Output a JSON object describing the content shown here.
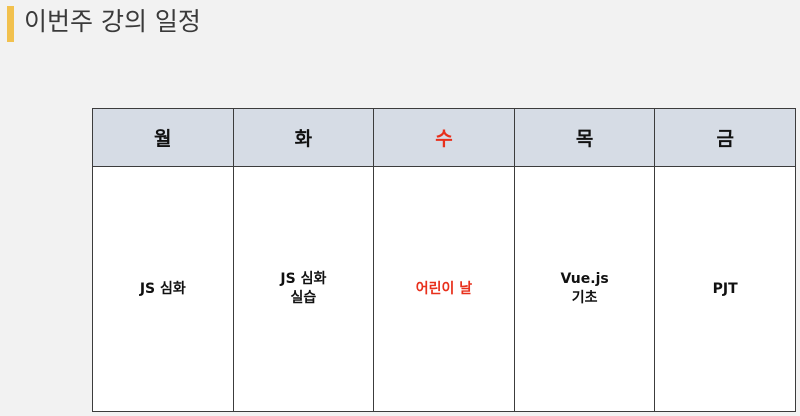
{
  "slide": {
    "title": "이번주 강의 일정",
    "accent_color": "#f2c14e",
    "highlight_color": "#e8301c"
  },
  "schedule": {
    "days": [
      {
        "label": "월",
        "highlight": false,
        "content": [
          "JS 심화"
        ]
      },
      {
        "label": "화",
        "highlight": false,
        "content": [
          "JS 심화",
          "실습"
        ]
      },
      {
        "label": "수",
        "highlight": true,
        "content": [
          "어린이 날"
        ]
      },
      {
        "label": "목",
        "highlight": false,
        "content": [
          "Vue.js",
          "기초"
        ]
      },
      {
        "label": "금",
        "highlight": false,
        "content": [
          "PJT"
        ]
      }
    ]
  }
}
